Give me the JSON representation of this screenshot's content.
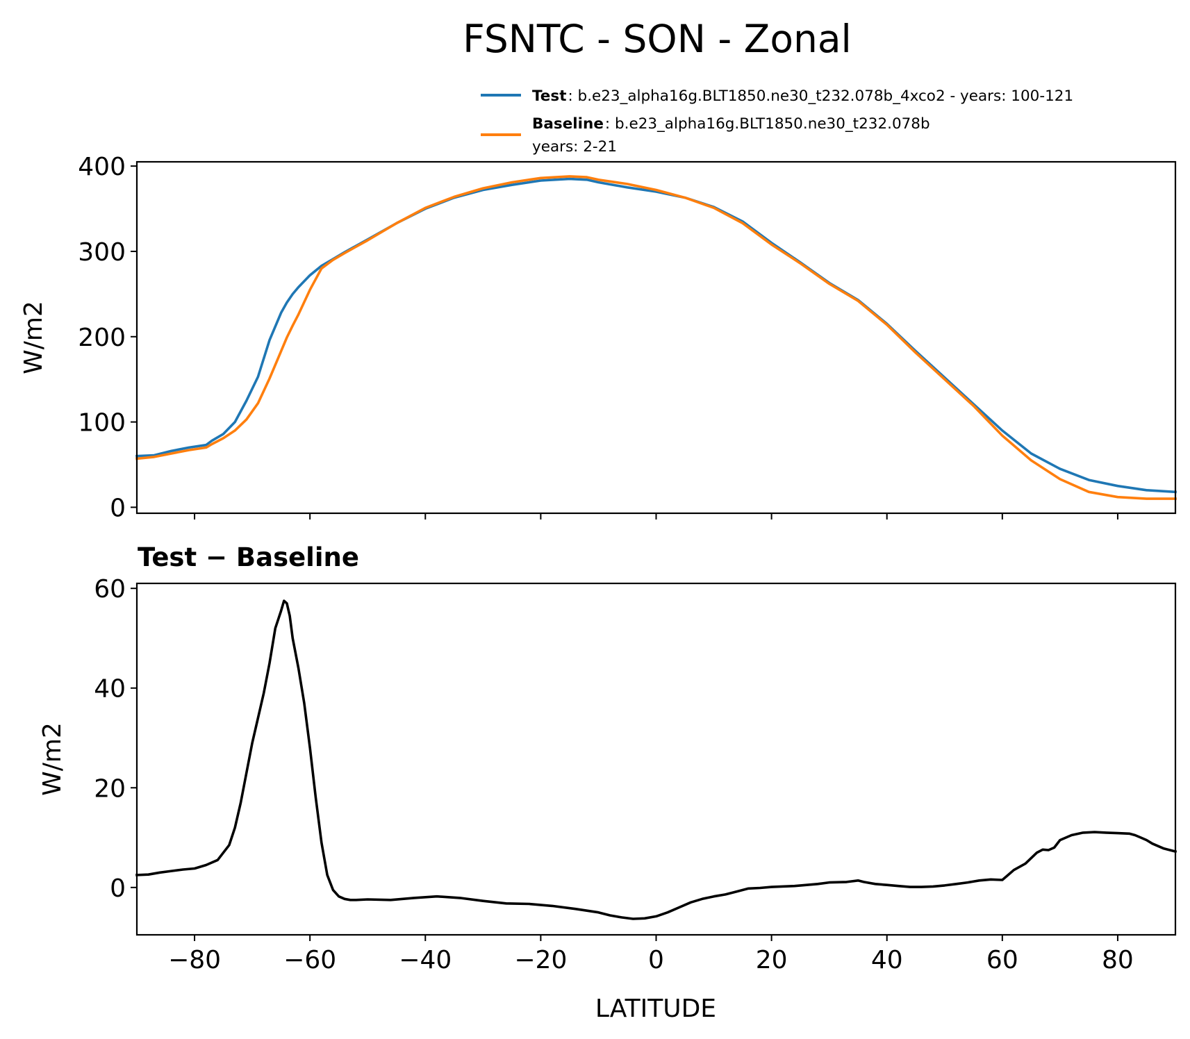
{
  "figure": {
    "title": "FSNTC - SON - Zonal",
    "legend": {
      "test_name": "Test",
      "test_desc": ": b.e23_alpha16g.BLT1850.ne30_t232.078b_4xco2 - years: 100-121",
      "baseline_name": "Baseline",
      "baseline_desc": ": b.e23_alpha16g.BLT1850.ne30_t232.078b",
      "baseline_years": "years: 2-21"
    },
    "diff_title": "Test − Baseline"
  },
  "chart_data": [
    {
      "type": "line",
      "title": "FSNTC - SON - Zonal",
      "xlabel": "",
      "ylabel": "W/m2",
      "xlim": [
        -90,
        90
      ],
      "ylim": [
        -7,
        405
      ],
      "yticks": [
        0,
        100,
        200,
        300,
        400
      ],
      "xticks": [
        -80,
        -60,
        -40,
        -20,
        0,
        20,
        40,
        60,
        80
      ],
      "legend_location": "top-right outside",
      "series": [
        {
          "name": "Test",
          "color": "#1f77b4",
          "x": [
            -90,
            -87,
            -84,
            -81,
            -78,
            -77,
            -75,
            -73,
            -71,
            -69,
            -67,
            -65,
            -64,
            -63,
            -62,
            -60,
            -58,
            -56,
            -54,
            -50,
            -45,
            -40,
            -35,
            -30,
            -25,
            -20,
            -15,
            -12,
            -10,
            -5,
            0,
            5,
            10,
            15,
            20,
            25,
            30,
            35,
            40,
            45,
            50,
            55,
            60,
            65,
            70,
            75,
            80,
            85,
            90
          ],
          "values": [
            60,
            61,
            66,
            70,
            73,
            78,
            86,
            100,
            125,
            153,
            196,
            228,
            240,
            250,
            258,
            272,
            283,
            291,
            299,
            314,
            333,
            350,
            363,
            372,
            378,
            383,
            385,
            384,
            381,
            375,
            370,
            363,
            352,
            335,
            310,
            287,
            263,
            243,
            215,
            183,
            152,
            121,
            90,
            63,
            45,
            32,
            25,
            20,
            18
          ]
        },
        {
          "name": "Baseline",
          "color": "#ff7f0e",
          "x": [
            -90,
            -87,
            -84,
            -81,
            -78,
            -77,
            -75,
            -73,
            -71,
            -69,
            -67,
            -65,
            -64,
            -63,
            -62,
            -60,
            -58,
            -56,
            -54,
            -50,
            -45,
            -40,
            -35,
            -30,
            -25,
            -20,
            -15,
            -12,
            -10,
            -5,
            0,
            5,
            10,
            15,
            20,
            25,
            30,
            35,
            40,
            45,
            50,
            55,
            60,
            65,
            70,
            75,
            80,
            85,
            90
          ],
          "values": [
            57,
            59,
            63,
            67,
            70,
            74,
            81,
            90,
            103,
            122,
            151,
            183,
            199,
            213,
            226,
            255,
            280,
            290,
            298,
            313,
            333,
            351,
            364,
            374,
            381,
            386,
            388,
            387,
            384,
            379,
            372,
            363,
            351,
            333,
            308,
            286,
            262,
            242,
            214,
            181,
            150,
            119,
            84,
            55,
            33,
            18,
            12,
            10,
            10
          ]
        }
      ]
    },
    {
      "type": "line",
      "title": "Test − Baseline",
      "xlabel": "LATITUDE",
      "ylabel": "W/m2",
      "xlim": [
        -90,
        90
      ],
      "ylim": [
        -9.5,
        61
      ],
      "yticks": [
        0,
        20,
        40,
        60
      ],
      "xticks": [
        -80,
        -60,
        -40,
        -20,
        0,
        20,
        40,
        60,
        80
      ],
      "series": [
        {
          "name": "Test − Baseline",
          "color": "#000000",
          "x": [
            -90,
            -88,
            -86,
            -84,
            -82,
            -80,
            -78,
            -76,
            -74,
            -73,
            -72,
            -71,
            -70,
            -69,
            -68,
            -67,
            -66,
            -65,
            -64.5,
            -64,
            -63.5,
            -63,
            -62,
            -61,
            -60,
            -59,
            -58,
            -57,
            -56,
            -55,
            -54,
            -53,
            -52,
            -50,
            -46,
            -42,
            -38,
            -34,
            -30,
            -26,
            -22,
            -18,
            -14,
            -10,
            -8,
            -6,
            -4,
            -2,
            0,
            2,
            4,
            6,
            8,
            10,
            12,
            14,
            16,
            18,
            20,
            24,
            28,
            30,
            33,
            35,
            36,
            38,
            40,
            42,
            44,
            46,
            48,
            50,
            52,
            54,
            56,
            58,
            60,
            61,
            62,
            64,
            66,
            67,
            68,
            69,
            70,
            72,
            74,
            76,
            78,
            80,
            82,
            83,
            84,
            85,
            86,
            88,
            90
          ],
          "values": [
            2.5,
            2.6,
            3.0,
            3.3,
            3.6,
            3.8,
            4.5,
            5.5,
            8.5,
            12,
            17,
            23,
            29,
            34,
            39,
            45,
            52,
            55.5,
            57.5,
            57,
            54.5,
            50,
            44,
            37,
            28,
            18,
            9,
            2.5,
            -0.5,
            -1.8,
            -2.3,
            -2.5,
            -2.5,
            -2.4,
            -2.5,
            -2.1,
            -1.8,
            -2.1,
            -2.7,
            -3.2,
            -3.3,
            -3.7,
            -4.3,
            -5.0,
            -5.6,
            -6.0,
            -6.3,
            -6.2,
            -5.8,
            -5.0,
            -4.0,
            -3.0,
            -2.3,
            -1.8,
            -1.4,
            -0.8,
            -0.2,
            -0.1,
            0.1,
            0.3,
            0.7,
            1.0,
            1.1,
            1.4,
            1.1,
            0.7,
            0.5,
            0.3,
            0.1,
            0.1,
            0.2,
            0.4,
            0.7,
            1.0,
            1.4,
            1.6,
            1.5,
            2.5,
            3.5,
            4.8,
            7.0,
            7.6,
            7.5,
            8.0,
            9.5,
            10.5,
            11.0,
            11.1,
            11.0,
            10.9,
            10.8,
            10.5,
            10.0,
            9.5,
            8.8,
            7.8,
            7.2
          ]
        }
      ]
    }
  ]
}
